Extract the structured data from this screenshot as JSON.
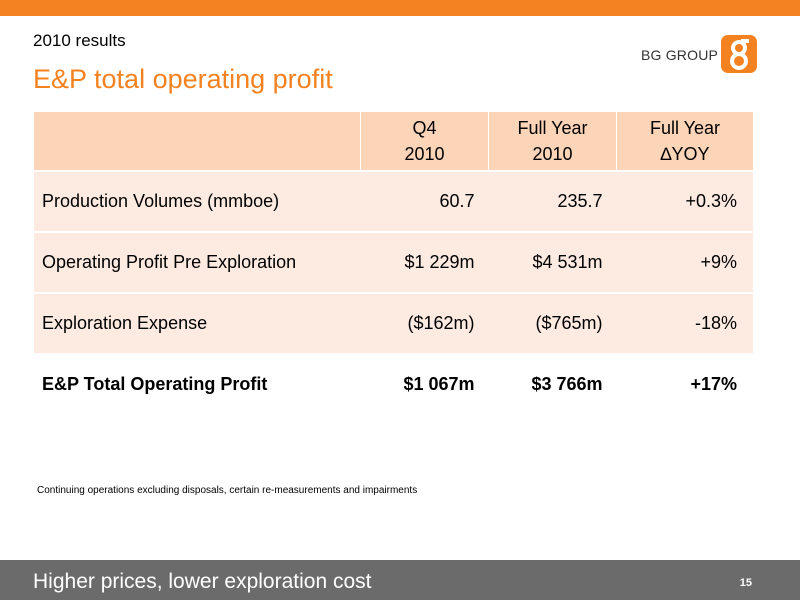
{
  "header": {
    "subtitle": "2010 results",
    "title": "E&P total operating profit",
    "logo_text": "BG GROUP",
    "accent_color": "#f58220",
    "logo_icon": "bg-group-logo-icon"
  },
  "table": {
    "columns": [
      {
        "line1": "",
        "line2": ""
      },
      {
        "line1": "Q4",
        "line2": "2010"
      },
      {
        "line1": "Full Year",
        "line2": "2010"
      },
      {
        "line1": "Full Year",
        "line2": "∆YOY"
      }
    ],
    "rows": [
      {
        "label": "Production Volumes (mmboe)",
        "q4": "60.7",
        "fy": "235.7",
        "yoy": "+0.3%"
      },
      {
        "label": "Operating Profit Pre Exploration",
        "q4": "$1 229m",
        "fy": "$4 531m",
        "yoy": "+9%"
      },
      {
        "label": "Exploration Expense",
        "q4": "($162m)",
        "fy": "($765m)",
        "yoy": "-18%"
      },
      {
        "label": "E&P Total Operating Profit",
        "q4": "$1 067m",
        "fy": "$3 766m",
        "yoy": "+17%"
      }
    ]
  },
  "footnote": "Continuing operations excluding disposals, certain re-measurements and impairments",
  "footer": {
    "tagline": "Higher prices, lower exploration cost",
    "page_number": "15"
  }
}
